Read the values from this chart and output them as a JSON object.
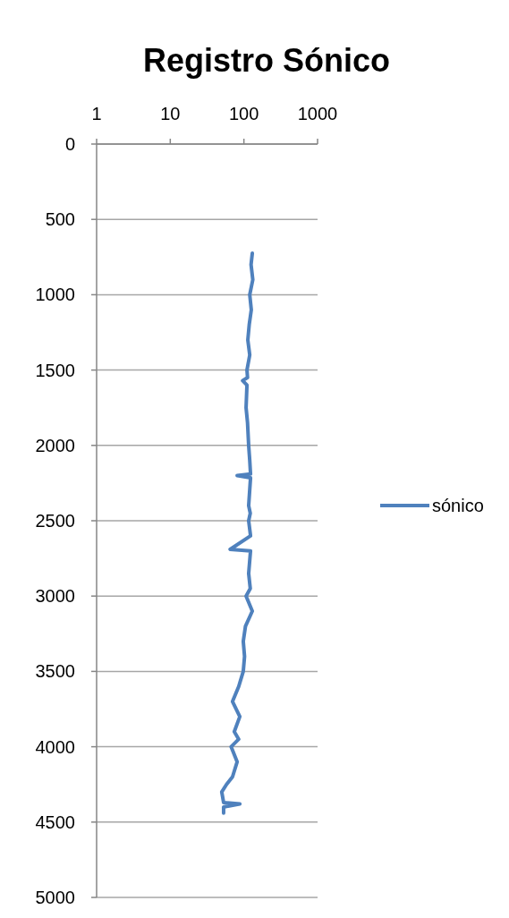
{
  "chart_data": {
    "type": "line",
    "title": "Registro Sónico",
    "log": "x",
    "xlim": [
      1,
      1000
    ],
    "xticks": [
      1,
      10,
      100,
      1000
    ],
    "ylim": [
      5000,
      0
    ],
    "yticks": [
      0,
      500,
      1000,
      1500,
      2000,
      2500,
      3000,
      3500,
      4000,
      4500,
      5000
    ],
    "grid": "y",
    "legend": "right",
    "series": [
      {
        "name": "sónico",
        "color": "#4f81bd",
        "x": [
          130,
          125,
          132,
          120,
          126,
          118,
          113,
          120,
          110,
          112,
          96,
          110,
          107,
          112,
          116,
          120,
          123,
          81,
          123,
          116,
          122,
          116,
          123,
          65,
          123,
          116,
          122,
          107,
          130,
          105,
          98,
          102,
          98,
          85,
          70,
          88,
          74,
          85,
          67,
          81,
          70,
          58,
          50,
          53,
          88,
          53,
          53
        ],
        "values": [
          725,
          800,
          900,
          1000,
          1100,
          1200,
          1300,
          1400,
          1500,
          1550,
          1570,
          1600,
          1750,
          1850,
          2000,
          2100,
          2190,
          2200,
          2215,
          2400,
          2450,
          2500,
          2600,
          2690,
          2700,
          2850,
          2950,
          3000,
          3100,
          3200,
          3300,
          3400,
          3500,
          3600,
          3700,
          3800,
          3900,
          3950,
          4000,
          4100,
          4200,
          4250,
          4300,
          4370,
          4380,
          4400,
          4440
        ]
      }
    ]
  }
}
